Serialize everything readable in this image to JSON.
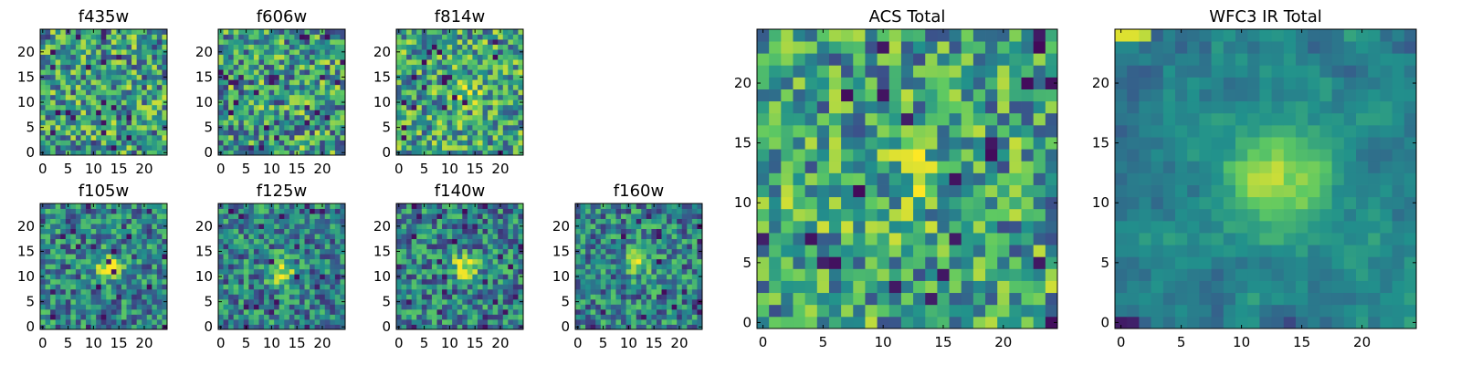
{
  "figure": {
    "background": "#ffffff",
    "colormap": [
      "#440154",
      "#3b528b",
      "#21918c",
      "#5ec962",
      "#fde725"
    ]
  },
  "chart_data": [
    {
      "type": "heatmap",
      "title": "f435w",
      "grid": false,
      "size": [
        25,
        25
      ],
      "xlim": [
        0,
        24
      ],
      "ylim": [
        0,
        24
      ],
      "xticks": [
        0,
        5,
        10,
        15,
        20
      ],
      "yticks": [
        0,
        5,
        10,
        15,
        20
      ],
      "pattern": "noise",
      "seed": 11,
      "peak": null
    },
    {
      "type": "heatmap",
      "title": "f606w",
      "grid": false,
      "size": [
        25,
        25
      ],
      "xlim": [
        0,
        24
      ],
      "ylim": [
        0,
        24
      ],
      "xticks": [
        0,
        5,
        10,
        15,
        20
      ],
      "yticks": [
        0,
        5,
        10,
        15,
        20
      ],
      "pattern": "noise",
      "seed": 23,
      "peak": null
    },
    {
      "type": "heatmap",
      "title": "f814w",
      "grid": false,
      "size": [
        25,
        25
      ],
      "xlim": [
        0,
        24
      ],
      "ylim": [
        0,
        24
      ],
      "xticks": [
        0,
        5,
        10,
        15,
        20
      ],
      "yticks": [
        0,
        5,
        10,
        15,
        20
      ],
      "pattern": "faint-source",
      "seed": 37,
      "peak": [
        13,
        12
      ]
    },
    {
      "type": "heatmap",
      "title": "f105w",
      "grid": false,
      "size": [
        25,
        25
      ],
      "xlim": [
        0,
        24
      ],
      "ylim": [
        0,
        24
      ],
      "xticks": [
        0,
        5,
        10,
        15,
        20
      ],
      "yticks": [
        0,
        5,
        10,
        15,
        20
      ],
      "pattern": "source",
      "seed": 41,
      "peak": [
        13,
        12
      ]
    },
    {
      "type": "heatmap",
      "title": "f125w",
      "grid": false,
      "size": [
        25,
        25
      ],
      "xlim": [
        0,
        24
      ],
      "ylim": [
        0,
        24
      ],
      "xticks": [
        0,
        5,
        10,
        15,
        20
      ],
      "yticks": [
        0,
        5,
        10,
        15,
        20
      ],
      "pattern": "source",
      "seed": 53,
      "peak": [
        12,
        11
      ]
    },
    {
      "type": "heatmap",
      "title": "f140w",
      "grid": false,
      "size": [
        25,
        25
      ],
      "xlim": [
        0,
        24
      ],
      "ylim": [
        0,
        24
      ],
      "xticks": [
        0,
        5,
        10,
        15,
        20
      ],
      "yticks": [
        0,
        5,
        10,
        15,
        20
      ],
      "pattern": "source",
      "seed": 67,
      "peak": [
        13,
        12
      ]
    },
    {
      "type": "heatmap",
      "title": "f160w",
      "grid": false,
      "size": [
        25,
        25
      ],
      "xlim": [
        0,
        24
      ],
      "ylim": [
        0,
        24
      ],
      "xticks": [
        0,
        5,
        10,
        15,
        20
      ],
      "yticks": [
        0,
        5,
        10,
        15,
        20
      ],
      "pattern": "source",
      "seed": 79,
      "peak": [
        12,
        13
      ]
    },
    {
      "type": "heatmap",
      "title": "ACS Total",
      "grid": false,
      "size": [
        25,
        25
      ],
      "xlim": [
        0,
        24
      ],
      "ylim": [
        0,
        24
      ],
      "xticks": [
        0,
        5,
        10,
        15,
        20
      ],
      "yticks": [
        0,
        5,
        10,
        15,
        20
      ],
      "pattern": "faint-source",
      "seed": 89,
      "peak": [
        13,
        12
      ]
    },
    {
      "type": "heatmap",
      "title": "WFC3 IR Total",
      "grid": false,
      "size": [
        25,
        25
      ],
      "xlim": [
        0,
        24
      ],
      "ylim": [
        0,
        24
      ],
      "xticks": [
        0,
        5,
        10,
        15,
        20
      ],
      "yticks": [
        0,
        5,
        10,
        15,
        20
      ],
      "pattern": "smooth-source",
      "seed": 97,
      "peak": [
        13,
        12
      ]
    }
  ]
}
